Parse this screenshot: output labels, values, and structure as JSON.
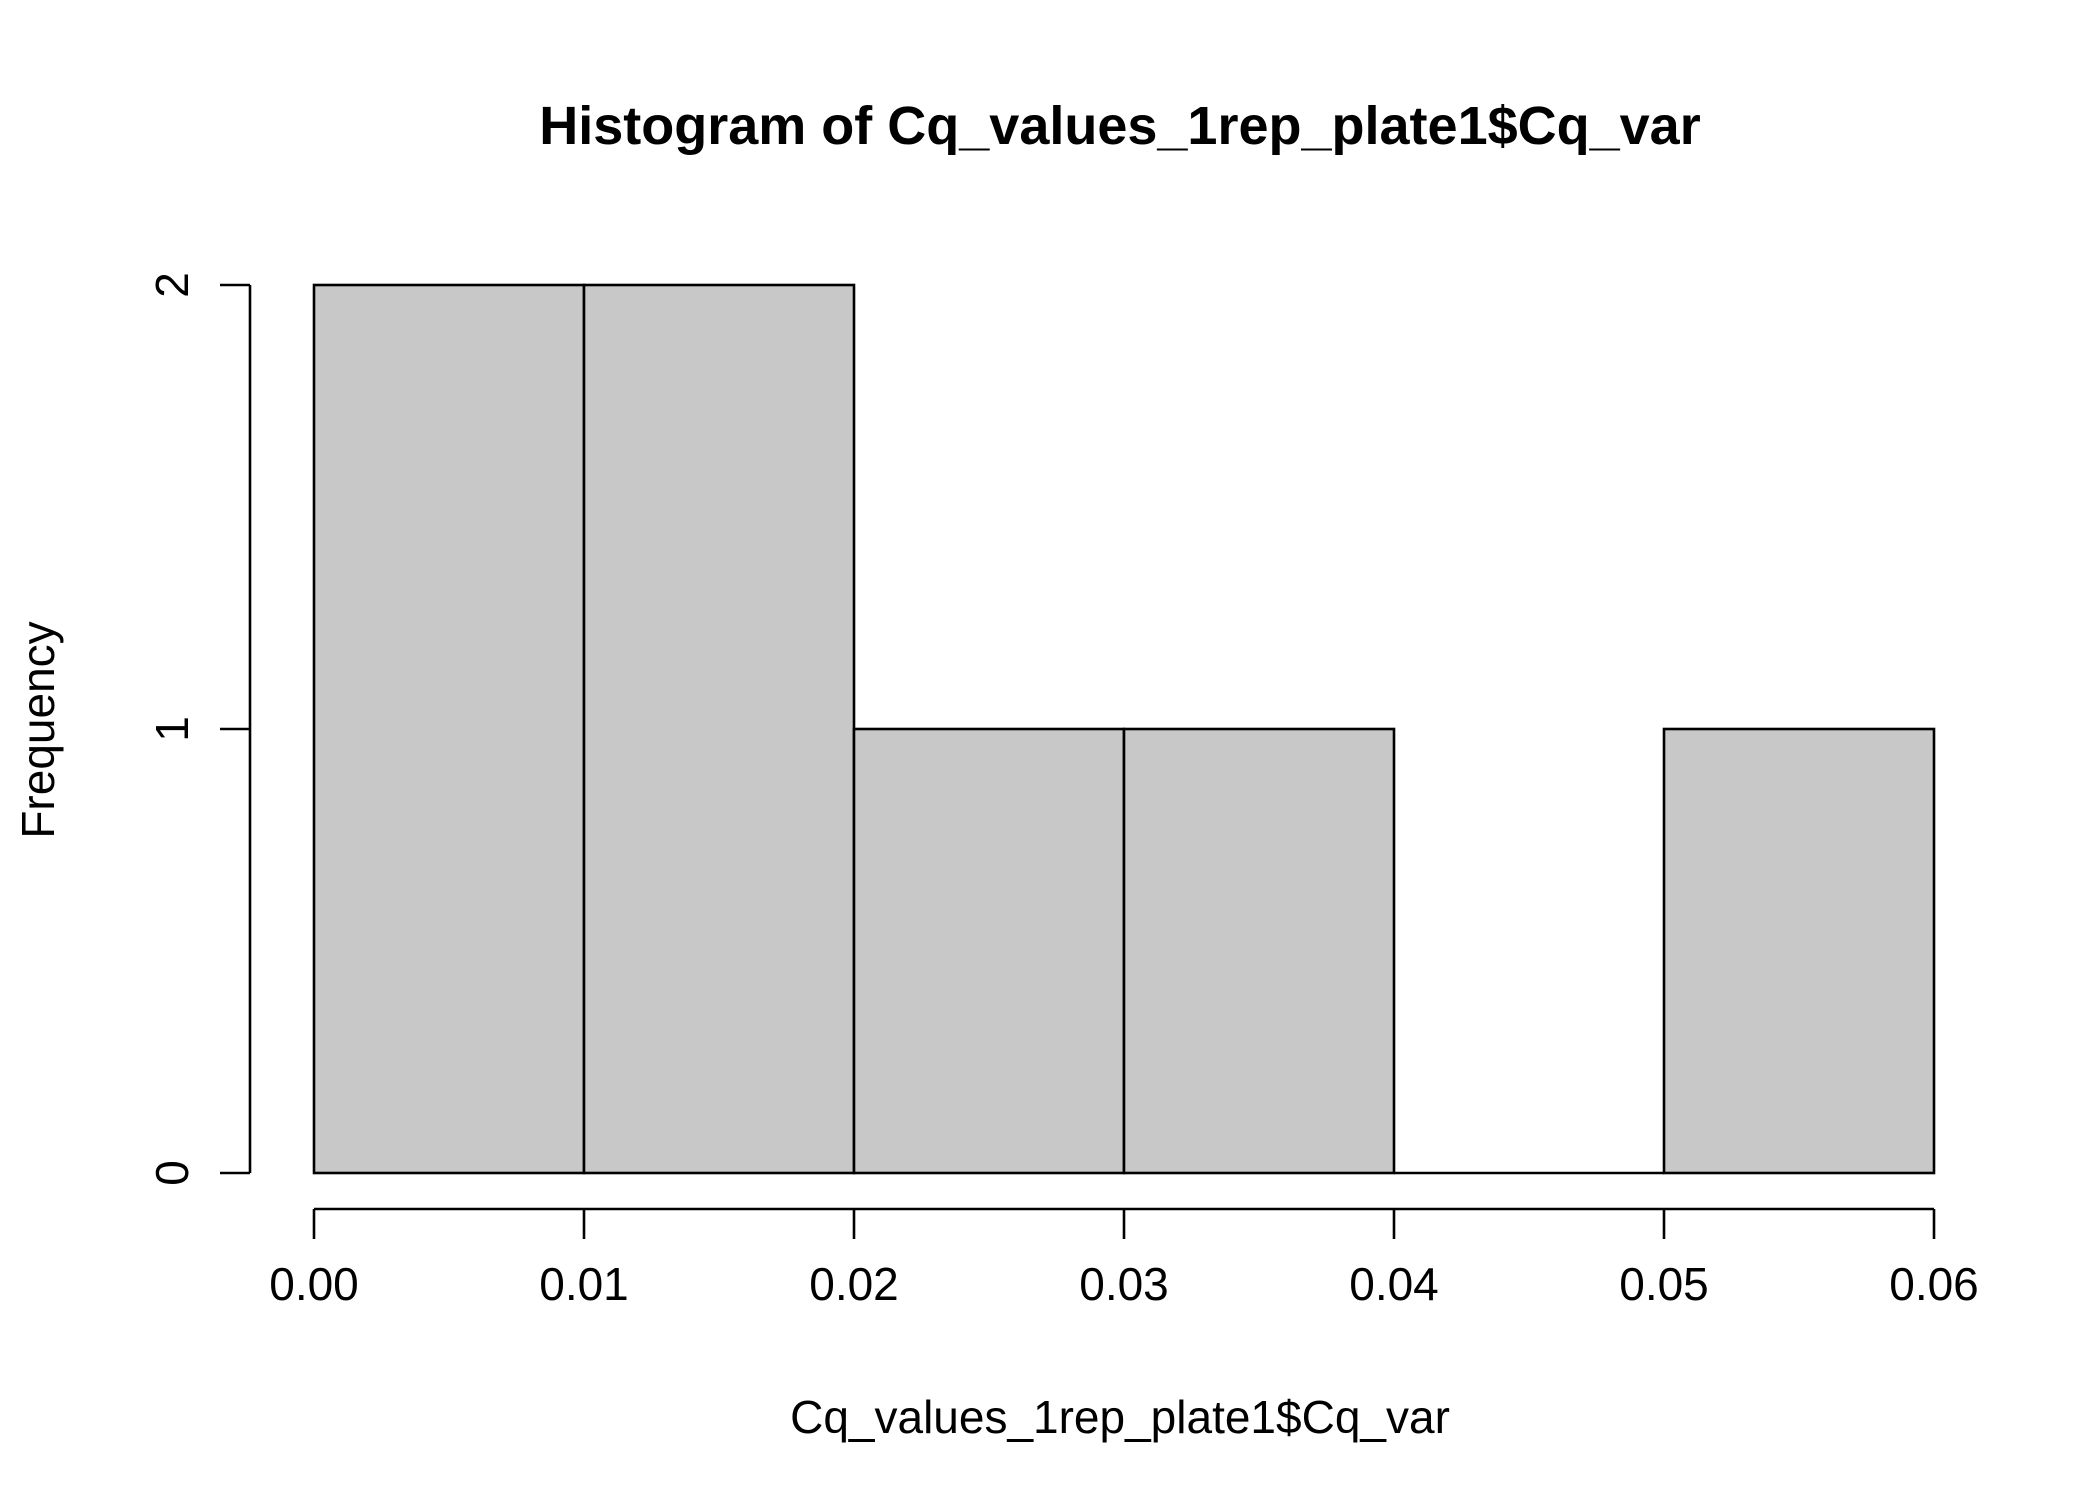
{
  "chart_data": {
    "type": "bar",
    "subtype": "histogram",
    "title": "Histogram of Cq_values_1rep_plate1$Cq_var",
    "xlabel": "Cq_values_1rep_plate1$Cq_var",
    "ylabel": "Frequency",
    "bins": [
      {
        "start": 0.0,
        "end": 0.01,
        "count": 2
      },
      {
        "start": 0.01,
        "end": 0.02,
        "count": 2
      },
      {
        "start": 0.02,
        "end": 0.03,
        "count": 1
      },
      {
        "start": 0.03,
        "end": 0.04,
        "count": 1
      },
      {
        "start": 0.04,
        "end": 0.05,
        "count": 0
      },
      {
        "start": 0.05,
        "end": 0.06,
        "count": 1
      }
    ],
    "xlim": [
      0.0,
      0.06
    ],
    "ylim": [
      0,
      2
    ],
    "x_ticks": [
      "0.00",
      "0.01",
      "0.02",
      "0.03",
      "0.04",
      "0.05",
      "0.06"
    ],
    "y_ticks": [
      "0",
      "1",
      "2"
    ],
    "bar_fill": "#c8c8c8",
    "bar_stroke": "#000000",
    "grid": false,
    "legend": "none"
  }
}
